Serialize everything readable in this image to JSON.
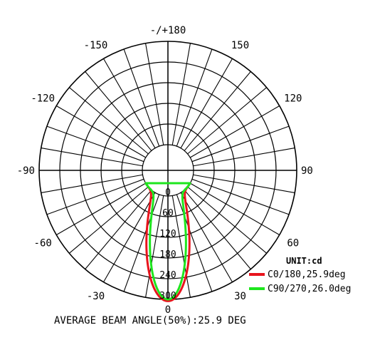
{
  "chart_data": {
    "type": "polar",
    "unit_label": "UNIT:cd",
    "footer": "AVERAGE BEAM ANGLE(50%):25.9 DEG",
    "angle_labels": [
      {
        "angle": 180,
        "text": "-/+180"
      },
      {
        "angle": -150,
        "text": "-150"
      },
      {
        "angle": 150,
        "text": "150"
      },
      {
        "angle": -120,
        "text": "-120"
      },
      {
        "angle": 120,
        "text": "120"
      },
      {
        "angle": -90,
        "text": "-90"
      },
      {
        "angle": 90,
        "text": "90"
      },
      {
        "angle": -60,
        "text": "-60"
      },
      {
        "angle": 60,
        "text": "60"
      },
      {
        "angle": -30,
        "text": "-30"
      },
      {
        "angle": 30,
        "text": "30"
      },
      {
        "angle": 0,
        "text": "0"
      }
    ],
    "radial_ticks": [
      "0",
      "60",
      "120",
      "180",
      "240",
      "300"
    ],
    "radial_range": [
      0,
      300
    ],
    "series": [
      {
        "name": "C0/180,25.9deg",
        "color": "#e8141c",
        "peak": 305,
        "half_width": 16.0
      },
      {
        "name": "C90/270,26.0deg",
        "color": "#1ee61e",
        "peak": 300,
        "half_width": 13.5
      }
    ]
  }
}
